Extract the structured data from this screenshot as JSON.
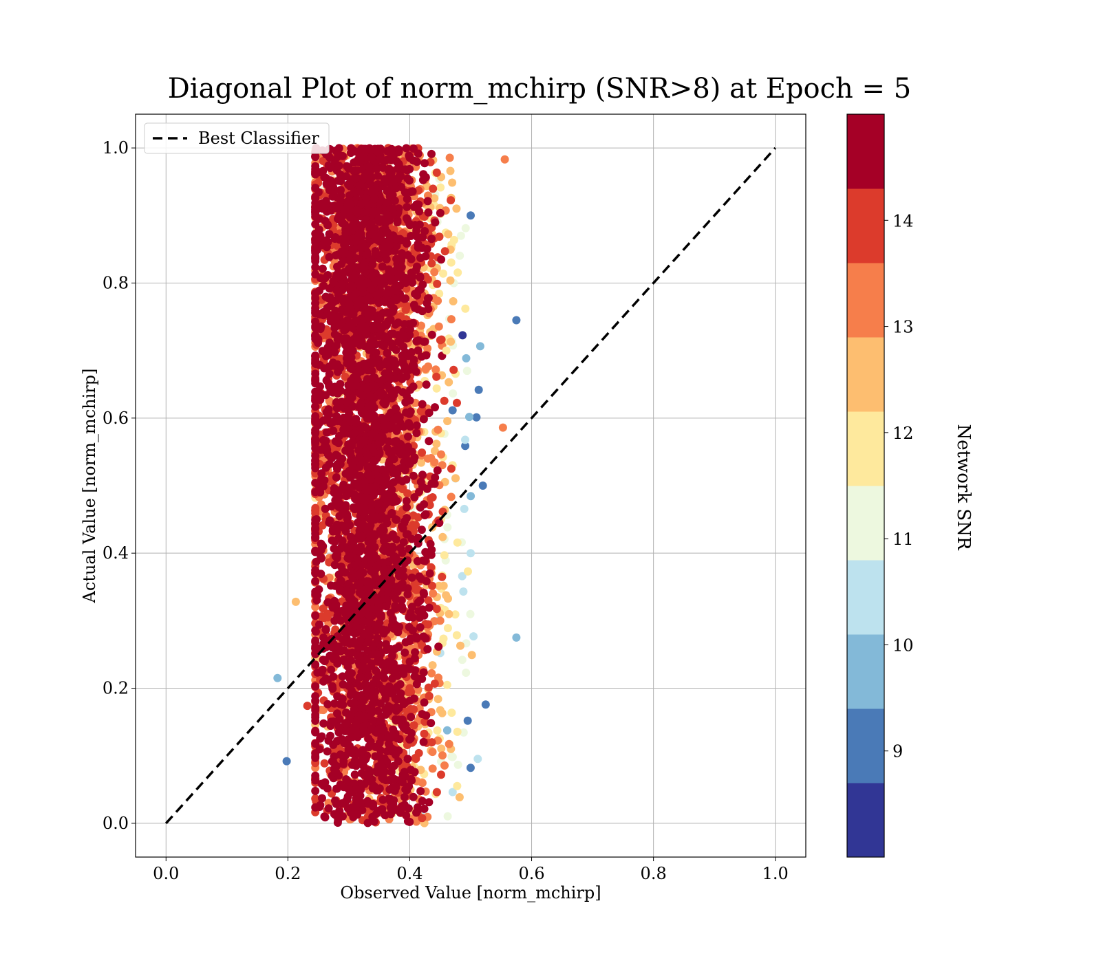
{
  "chart_data": {
    "type": "scatter",
    "title": "Diagonal Plot of norm_mchirp (SNR>8) at Epoch = 5",
    "xlabel": "Observed Value [norm_mchirp]",
    "ylabel": "Actual Value [norm_mchirp]",
    "xlim": [
      -0.05,
      1.05
    ],
    "ylim": [
      -0.05,
      1.05
    ],
    "x_ticks": [
      "0.0",
      "0.2",
      "0.4",
      "0.6",
      "0.8",
      "1.0"
    ],
    "y_ticks": [
      "0.0",
      "0.2",
      "0.4",
      "0.6",
      "0.8",
      "1.0"
    ],
    "grid": true,
    "legend": {
      "placement": "top-left",
      "entries": [
        "Best Classifier"
      ]
    },
    "reference_line": {
      "name": "Best Classifier",
      "style": "dashed",
      "color": "#000000",
      "x": [
        0.0,
        1.0
      ],
      "y": [
        0.0,
        1.0
      ]
    },
    "colorbar": {
      "label": "Network SNR",
      "range": [
        8.0,
        15.0
      ],
      "ticks": [
        "9",
        "10",
        "11",
        "12",
        "13",
        "14"
      ],
      "tick_values": [
        9,
        10,
        11,
        12,
        13,
        14
      ],
      "bands": [
        "#313695",
        "#4a7ab7",
        "#83b9d8",
        "#bde2ee",
        "#edf8df",
        "#fee99d",
        "#fdbe70",
        "#f67e4b",
        "#dc3b2c",
        "#a50026"
      ]
    },
    "series": [
      {
        "name": "",
        "description_points": [
          {
            "x": 0.26,
            "y": 0.01,
            "snr": 14.5
          },
          {
            "x": 0.3,
            "y": 0.05,
            "snr": 14.5
          },
          {
            "x": 0.35,
            "y": 0.1,
            "snr": 14.5
          },
          {
            "x": 0.4,
            "y": 0.2,
            "snr": 14.0
          },
          {
            "x": 0.45,
            "y": 0.3,
            "snr": 13.0
          },
          {
            "x": 0.5,
            "y": 0.4,
            "snr": 10.5
          },
          {
            "x": 0.52,
            "y": 0.5,
            "snr": 9.0
          },
          {
            "x": 0.3,
            "y": 0.6,
            "snr": 14.5
          },
          {
            "x": 0.33,
            "y": 0.8,
            "snr": 14.5
          },
          {
            "x": 0.36,
            "y": 0.95,
            "snr": 14.5
          },
          {
            "x": 0.46,
            "y": 0.7,
            "snr": 12.0
          },
          {
            "x": 0.5,
            "y": 0.9,
            "snr": 9.0
          },
          {
            "x": 0.575,
            "y": 0.745,
            "snr": 9.2
          },
          {
            "x": 0.575,
            "y": 0.275,
            "snr": 9.4
          },
          {
            "x": 0.183,
            "y": 0.215,
            "snr": 9.8
          },
          {
            "x": 0.198,
            "y": 0.092,
            "snr": 9.3
          },
          {
            "x": 0.213,
            "y": 0.328,
            "snr": 12.8
          },
          {
            "x": 0.232,
            "y": 0.174,
            "snr": 14.0
          },
          {
            "x": 0.556,
            "y": 0.983,
            "snr": 13.3
          },
          {
            "x": 0.553,
            "y": 0.586,
            "snr": 13.3
          }
        ],
        "x_range": [
          0.18,
          0.58
        ],
        "y_range": [
          0.0,
          1.0
        ],
        "core_x_range": [
          0.26,
          0.42
        ]
      }
    ]
  }
}
